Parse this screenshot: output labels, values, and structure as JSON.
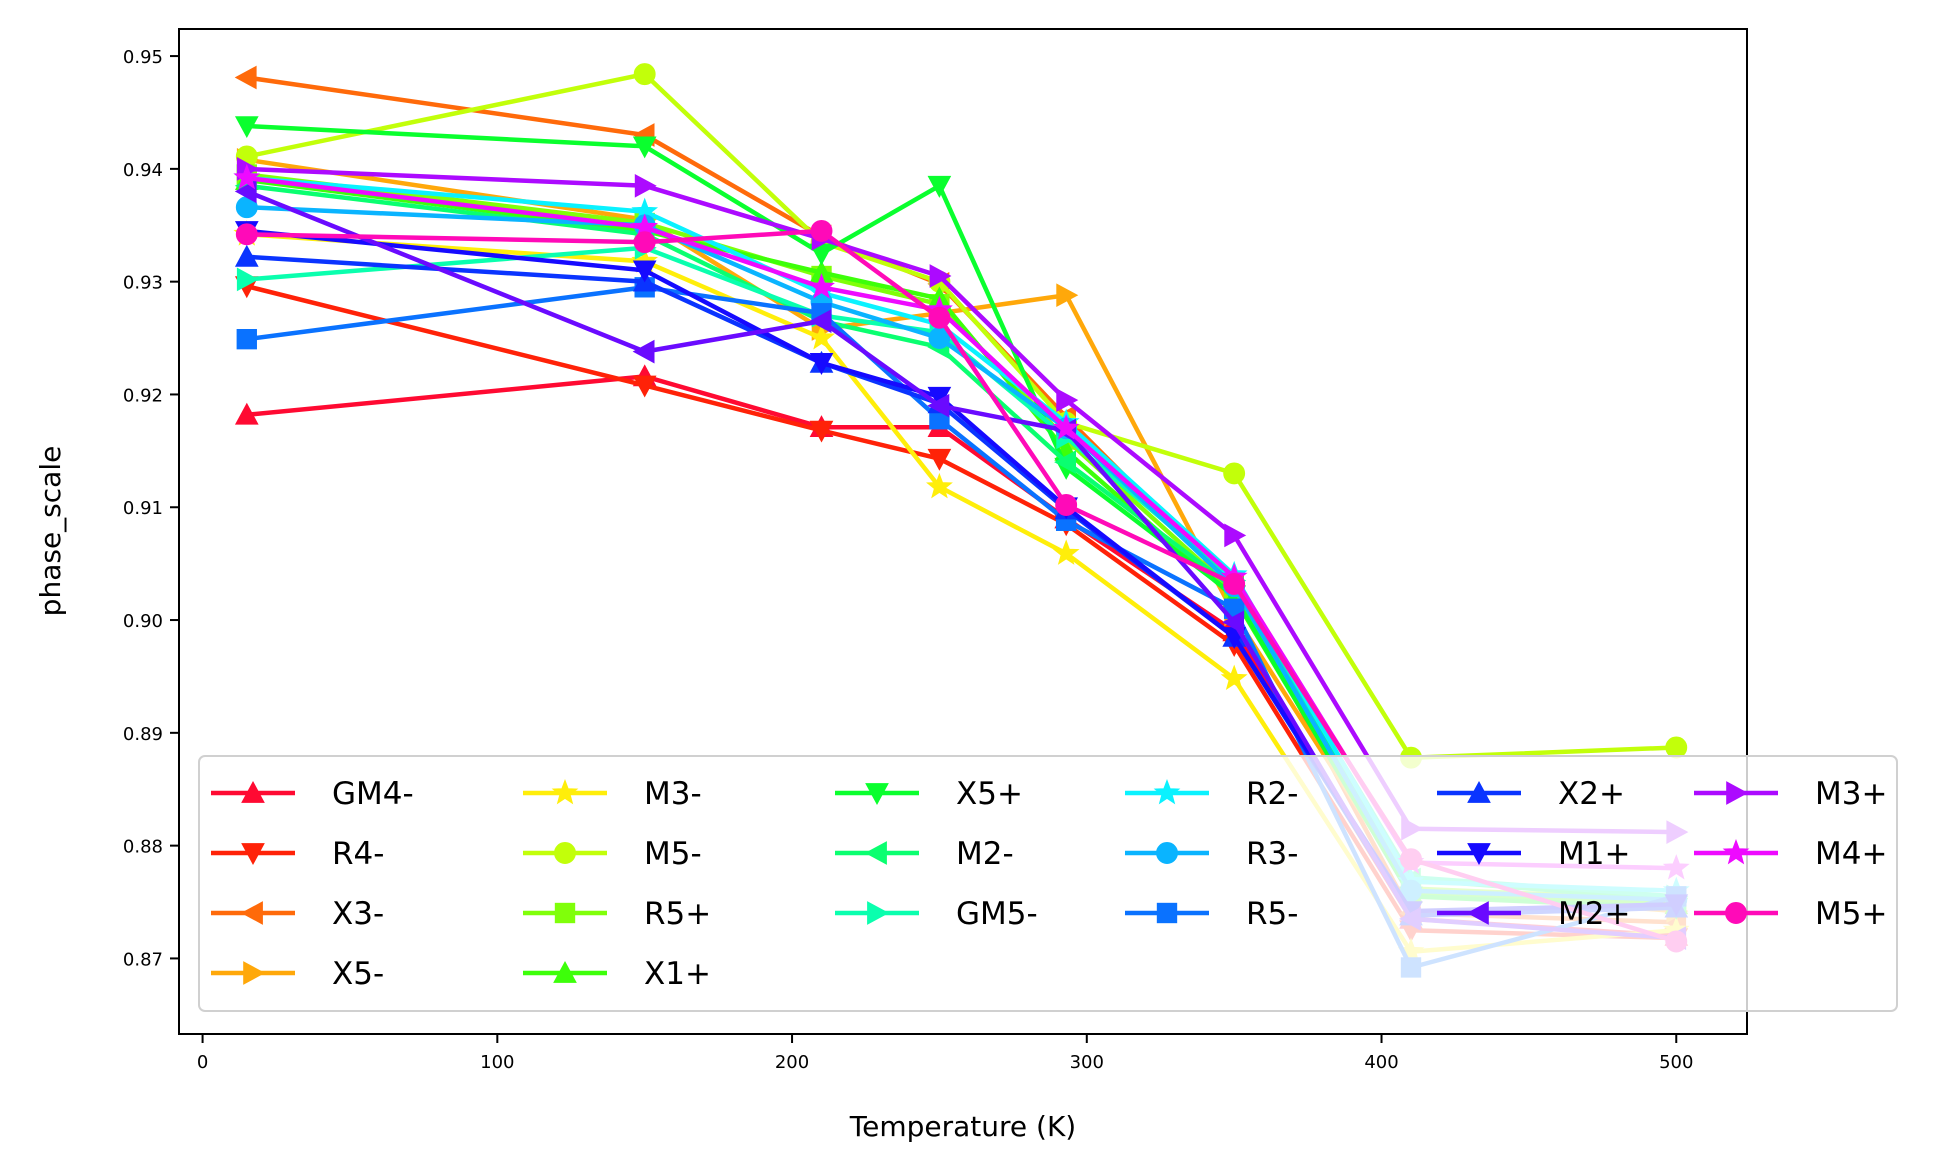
{
  "chart_data": {
    "type": "line",
    "title": "",
    "xlabel": "Temperature (K)",
    "ylabel": "phase_scale",
    "xlim": [
      -8,
      524
    ],
    "ylim": [
      0.8633,
      0.9524
    ],
    "xticks": [
      0,
      100,
      200,
      300,
      400,
      500
    ],
    "yticks": [
      0.87,
      0.88,
      0.89,
      0.9,
      0.91,
      0.92,
      0.93,
      0.94,
      0.95
    ],
    "ytick_labels": [
      "0.87",
      "0.88",
      "0.89",
      "0.90",
      "0.91",
      "0.92",
      "0.93",
      "0.94",
      "0.95"
    ],
    "x": [
      15,
      150,
      210,
      250,
      293,
      350,
      410,
      500
    ],
    "grid": false,
    "legend": {
      "placement": "lower-center",
      "columns": 6
    },
    "series": [
      {
        "name": "GM4-",
        "color": "#ff0a32",
        "marker": "^",
        "values": [
          0.9182,
          0.9216,
          0.9171,
          0.9171,
          0.909,
          0.899,
          0.8735,
          0.872
        ]
      },
      {
        "name": "R4-",
        "color": "#ff2208",
        "marker": "v",
        "values": [
          0.9296,
          0.9208,
          0.9168,
          0.9143,
          0.9085,
          0.8978,
          0.8725,
          0.8718
        ]
      },
      {
        "name": "X3-",
        "color": "#ff6a0a",
        "marker": "<",
        "values": [
          0.9481,
          0.943,
          0.934,
          0.9298,
          0.918,
          0.903,
          0.874,
          0.8732
        ]
      },
      {
        "name": "X5-",
        "color": "#ffa80a",
        "marker": ">",
        "values": [
          0.9408,
          0.9355,
          0.9258,
          0.9272,
          0.9288,
          0.9005,
          0.876,
          0.8742
        ]
      },
      {
        "name": "M3-",
        "color": "#ffee0a",
        "marker": "*",
        "values": [
          0.9342,
          0.9318,
          0.925,
          0.9118,
          0.9059,
          0.8948,
          0.8706,
          0.8725
        ]
      },
      {
        "name": "M5-",
        "color": "#c2ff0a",
        "marker": "o",
        "values": [
          0.9411,
          0.9484,
          0.9335,
          0.93,
          0.9175,
          0.913,
          0.8878,
          0.8887
        ]
      },
      {
        "name": "R5+",
        "color": "#80ff0a",
        "marker": "s",
        "values": [
          0.9395,
          0.9352,
          0.9305,
          0.928,
          0.916,
          0.9025,
          0.8762,
          0.8752
        ]
      },
      {
        "name": "X1+",
        "color": "#3dff0a",
        "marker": "^",
        "values": [
          0.939,
          0.9345,
          0.9308,
          0.9285,
          0.915,
          0.902,
          0.8758,
          0.8748
        ]
      },
      {
        "name": "X5+",
        "color": "#0aff2e",
        "marker": "v",
        "values": [
          0.9438,
          0.942,
          0.9325,
          0.9385,
          0.9135,
          0.9022,
          0.8755,
          0.8745
        ]
      },
      {
        "name": "M2-",
        "color": "#0aff70",
        "marker": "<",
        "values": [
          0.9385,
          0.9342,
          0.9265,
          0.9242,
          0.914,
          0.9028,
          0.877,
          0.8752
        ]
      },
      {
        "name": "GM5-",
        "color": "#0affae",
        "marker": ">",
        "values": [
          0.9302,
          0.933,
          0.927,
          0.9255,
          0.9162,
          0.9035,
          0.8772,
          0.8755
        ]
      },
      {
        "name": "R2-",
        "color": "#0af2ff",
        "marker": "*",
        "values": [
          0.9392,
          0.9362,
          0.929,
          0.9262,
          0.9175,
          0.904,
          0.8768,
          0.876
        ]
      },
      {
        "name": "R3-",
        "color": "#0ab4ff",
        "marker": "o",
        "values": [
          0.9366,
          0.935,
          0.9282,
          0.925,
          0.917,
          0.903,
          0.876,
          0.8752
        ]
      },
      {
        "name": "R5-",
        "color": "#0a72ff",
        "marker": "s",
        "values": [
          0.9249,
          0.9295,
          0.9272,
          0.9178,
          0.9088,
          0.901,
          0.8692,
          0.8755
        ]
      },
      {
        "name": "X2+",
        "color": "#0a34ff",
        "marker": "^",
        "values": [
          0.9322,
          0.93,
          0.9228,
          0.9192,
          0.9098,
          0.8985,
          0.8738,
          0.8745
        ]
      },
      {
        "name": "M1+",
        "color": "#160aff",
        "marker": "v",
        "values": [
          0.9345,
          0.931,
          0.9228,
          0.9198,
          0.91,
          0.8985,
          0.8742,
          0.8748
        ]
      },
      {
        "name": "M2+",
        "color": "#6a0aff",
        "marker": "<",
        "values": [
          0.938,
          0.9238,
          0.9265,
          0.919,
          0.9168,
          0.8998,
          0.8735,
          0.8718
        ]
      },
      {
        "name": "M3+",
        "color": "#ac0aff",
        "marker": ">",
        "values": [
          0.94,
          0.9385,
          0.9338,
          0.9305,
          0.9195,
          0.9075,
          0.8815,
          0.8812
        ]
      },
      {
        "name": "M4+",
        "color": "#ee0aff",
        "marker": "*",
        "values": [
          0.9392,
          0.9348,
          0.9295,
          0.9275,
          0.917,
          0.9038,
          0.8785,
          0.878
        ]
      },
      {
        "name": "M5+",
        "color": "#ff0ab8",
        "marker": "o",
        "values": [
          0.9342,
          0.9335,
          0.9345,
          0.9268,
          0.9102,
          0.9032,
          0.8788,
          0.8715
        ]
      }
    ]
  }
}
